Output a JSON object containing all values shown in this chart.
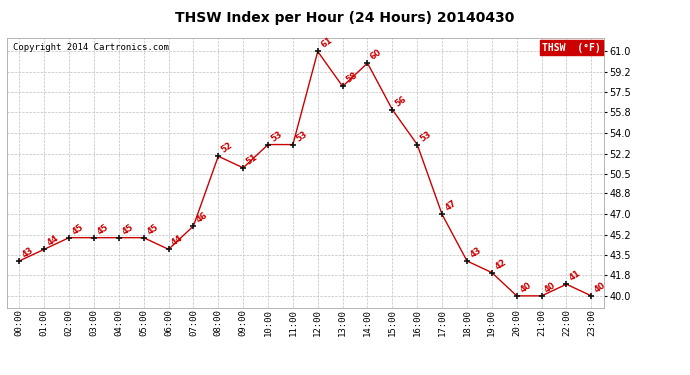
{
  "title": "THSW Index per Hour (24 Hours) 20140430",
  "copyright": "Copyright 2014 Cartronics.com",
  "legend_label": "THSW  (°F)",
  "hours": [
    "00:00",
    "01:00",
    "02:00",
    "03:00",
    "04:00",
    "05:00",
    "06:00",
    "07:00",
    "08:00",
    "09:00",
    "10:00",
    "11:00",
    "12:00",
    "13:00",
    "14:00",
    "15:00",
    "16:00",
    "17:00",
    "18:00",
    "19:00",
    "20:00",
    "21:00",
    "22:00",
    "23:00"
  ],
  "values": [
    43,
    44,
    45,
    45,
    45,
    45,
    44,
    46,
    52,
    51,
    53,
    53,
    61,
    58,
    60,
    56,
    53,
    47,
    43,
    42,
    40,
    40,
    41,
    40
  ],
  "line_color": "#cc0000",
  "marker_color": "#111111",
  "label_color": "#cc0000",
  "bg_color": "#ffffff",
  "grid_color": "#c0c0c0",
  "ylim_min": 39.0,
  "ylim_max": 62.2,
  "yticks": [
    40.0,
    41.8,
    43.5,
    45.2,
    47.0,
    48.8,
    50.5,
    52.2,
    54.0,
    55.8,
    57.5,
    59.2,
    61.0
  ],
  "legend_bg": "#cc0000",
  "legend_text_color": "#ffffff",
  "title_fontsize": 10,
  "copyright_fontsize": 6.5,
  "label_fontsize": 6,
  "tick_fontsize": 6.5,
  "ytick_fontsize": 7
}
